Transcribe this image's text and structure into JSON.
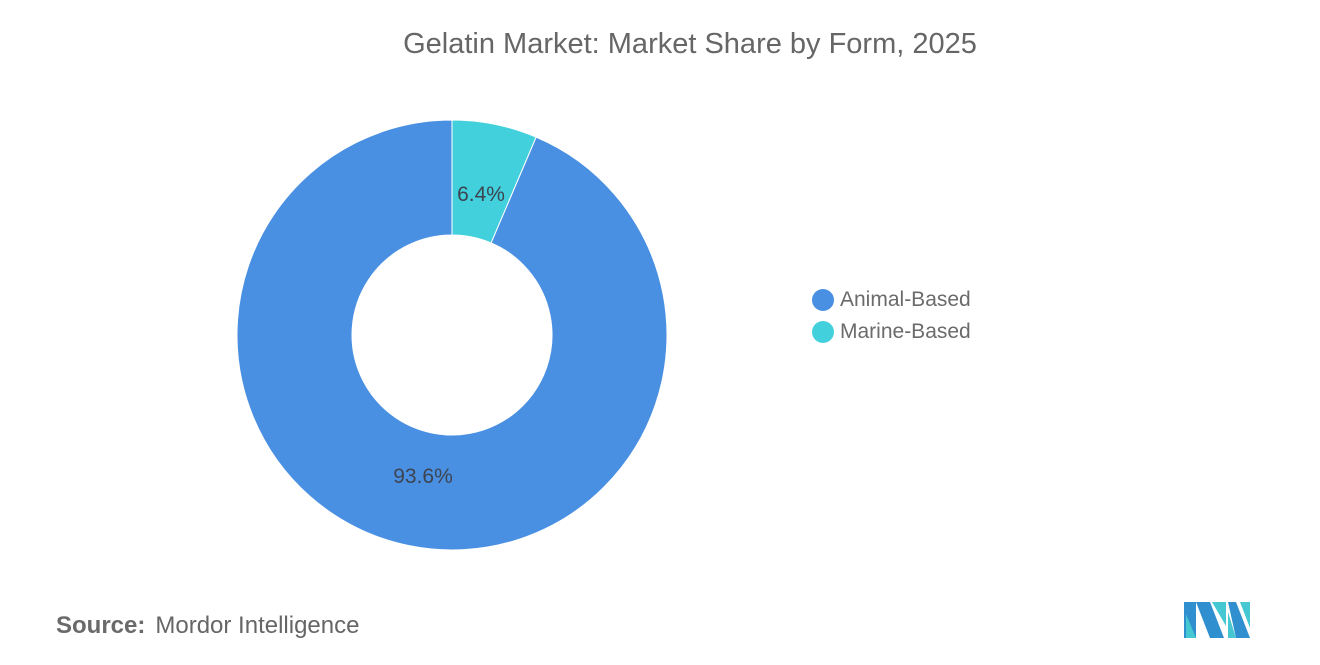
{
  "title": "Gelatin Market: Market Share by Form, 2025",
  "chart_data": {
    "type": "pie",
    "subtype": "donut",
    "title": "Gelatin Market: Market Share by Form, 2025",
    "categories": [
      "Animal-Based",
      "Marine-Based"
    ],
    "values": [
      93.6,
      6.4
    ],
    "unit": "%",
    "data_labels": [
      "93.6%",
      "6.4%"
    ],
    "colors": [
      "#4a90e2",
      "#42d1dc"
    ],
    "legend_position": "right",
    "start_angle_deg": 0,
    "direction": "clockwise"
  },
  "legend": {
    "items": [
      {
        "label": "Animal-Based",
        "color": "#4a90e2"
      },
      {
        "label": "Marine-Based",
        "color": "#42d1dc"
      }
    ]
  },
  "labels": {
    "animal": "93.6%",
    "marine": "6.4%"
  },
  "source": {
    "key": "Source:",
    "value": "Mordor Intelligence"
  },
  "logo": {
    "icon": "mordor-intelligence-logo-icon"
  }
}
